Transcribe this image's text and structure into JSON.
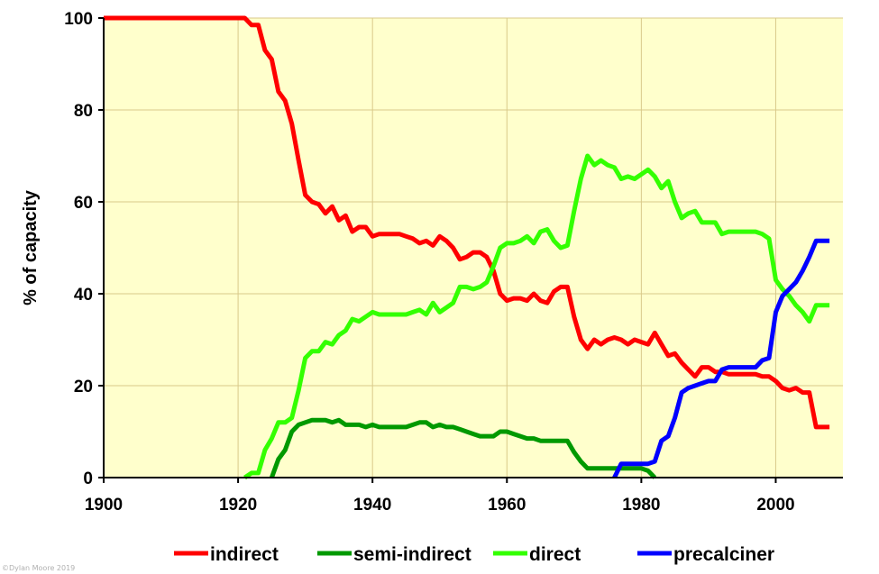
{
  "chart_data": {
    "type": "line",
    "title": "",
    "xlabel": "",
    "ylabel": "% of capacity",
    "xlim": [
      1900,
      2010
    ],
    "ylim": [
      0,
      100
    ],
    "xticks": [
      1900,
      1920,
      1940,
      1960,
      1980,
      2000
    ],
    "yticks": [
      0,
      20,
      40,
      60,
      80,
      100
    ],
    "xtick_labels": [
      "1900",
      "1920",
      "1940",
      "1960",
      "1980",
      "2000"
    ],
    "ytick_labels": [
      "0",
      "20",
      "40",
      "60",
      "80",
      "100"
    ],
    "grid": true,
    "legend_position": "bottom",
    "series": [
      {
        "name": "indirect",
        "color": "#ff0000",
        "points": [
          [
            1900,
            100
          ],
          [
            1921,
            100
          ],
          [
            1922,
            98.5
          ],
          [
            1923,
            98.5
          ],
          [
            1924,
            93
          ],
          [
            1925,
            91
          ],
          [
            1926,
            84
          ],
          [
            1927,
            82
          ],
          [
            1928,
            77
          ],
          [
            1929,
            69
          ],
          [
            1930,
            61.5
          ],
          [
            1931,
            60
          ],
          [
            1932,
            59.5
          ],
          [
            1933,
            57.5
          ],
          [
            1934,
            59
          ],
          [
            1935,
            56
          ],
          [
            1936,
            57
          ],
          [
            1937,
            53.5
          ],
          [
            1938,
            54.5
          ],
          [
            1939,
            54.5
          ],
          [
            1940,
            52.5
          ],
          [
            1941,
            53
          ],
          [
            1942,
            53
          ],
          [
            1943,
            53
          ],
          [
            1944,
            53
          ],
          [
            1945,
            52.5
          ],
          [
            1946,
            52
          ],
          [
            1947,
            51
          ],
          [
            1948,
            51.5
          ],
          [
            1949,
            50.5
          ],
          [
            1950,
            52.5
          ],
          [
            1951,
            51.5
          ],
          [
            1952,
            50
          ],
          [
            1953,
            47.5
          ],
          [
            1954,
            48
          ],
          [
            1955,
            49
          ],
          [
            1956,
            49
          ],
          [
            1957,
            48
          ],
          [
            1958,
            45
          ],
          [
            1959,
            40
          ],
          [
            1960,
            38.5
          ],
          [
            1961,
            39
          ],
          [
            1962,
            39
          ],
          [
            1963,
            38.5
          ],
          [
            1964,
            40
          ],
          [
            1965,
            38.5
          ],
          [
            1966,
            38
          ],
          [
            1967,
            40.5
          ],
          [
            1968,
            41.5
          ],
          [
            1969,
            41.5
          ],
          [
            1970,
            35
          ],
          [
            1971,
            30
          ],
          [
            1972,
            28
          ],
          [
            1973,
            30
          ],
          [
            1974,
            29
          ],
          [
            1975,
            30
          ],
          [
            1976,
            30.5
          ],
          [
            1977,
            30
          ],
          [
            1978,
            29
          ],
          [
            1979,
            30
          ],
          [
            1980,
            29.5
          ],
          [
            1981,
            29
          ],
          [
            1982,
            31.5
          ],
          [
            1983,
            29
          ],
          [
            1984,
            26.5
          ],
          [
            1985,
            27
          ],
          [
            1986,
            25
          ],
          [
            1987,
            23.5
          ],
          [
            1988,
            22
          ],
          [
            1989,
            24
          ],
          [
            1990,
            24
          ],
          [
            1991,
            23
          ],
          [
            1992,
            23
          ],
          [
            1993,
            22.5
          ],
          [
            1994,
            22.5
          ],
          [
            1995,
            22.5
          ],
          [
            1996,
            22.5
          ],
          [
            1997,
            22.5
          ],
          [
            1998,
            22
          ],
          [
            1999,
            22
          ],
          [
            2000,
            21
          ],
          [
            2001,
            19.5
          ],
          [
            2002,
            19
          ],
          [
            2003,
            19.5
          ],
          [
            2004,
            18.5
          ],
          [
            2005,
            18.5
          ],
          [
            2006,
            11
          ],
          [
            2007,
            11
          ],
          [
            2008,
            11
          ]
        ]
      },
      {
        "name": "semi-indirect",
        "color": "#009900",
        "points": [
          [
            1925,
            0
          ],
          [
            1926,
            4
          ],
          [
            1927,
            6
          ],
          [
            1928,
            10
          ],
          [
            1929,
            11.5
          ],
          [
            1930,
            12
          ],
          [
            1931,
            12.5
          ],
          [
            1932,
            12.5
          ],
          [
            1933,
            12.5
          ],
          [
            1934,
            12
          ],
          [
            1935,
            12.5
          ],
          [
            1936,
            11.5
          ],
          [
            1937,
            11.5
          ],
          [
            1938,
            11.5
          ],
          [
            1939,
            11
          ],
          [
            1940,
            11.5
          ],
          [
            1941,
            11
          ],
          [
            1942,
            11
          ],
          [
            1943,
            11
          ],
          [
            1944,
            11
          ],
          [
            1945,
            11
          ],
          [
            1946,
            11.5
          ],
          [
            1947,
            12
          ],
          [
            1948,
            12
          ],
          [
            1949,
            11
          ],
          [
            1950,
            11.5
          ],
          [
            1951,
            11
          ],
          [
            1952,
            11
          ],
          [
            1953,
            10.5
          ],
          [
            1954,
            10
          ],
          [
            1955,
            9.5
          ],
          [
            1956,
            9
          ],
          [
            1957,
            9
          ],
          [
            1958,
            9
          ],
          [
            1959,
            10
          ],
          [
            1960,
            10
          ],
          [
            1961,
            9.5
          ],
          [
            1962,
            9
          ],
          [
            1963,
            8.5
          ],
          [
            1964,
            8.5
          ],
          [
            1965,
            8
          ],
          [
            1966,
            8
          ],
          [
            1967,
            8
          ],
          [
            1968,
            8
          ],
          [
            1969,
            8
          ],
          [
            1970,
            5.5
          ],
          [
            1971,
            3.5
          ],
          [
            1972,
            2
          ],
          [
            1973,
            2
          ],
          [
            1974,
            2
          ],
          [
            1975,
            2
          ],
          [
            1976,
            2
          ],
          [
            1977,
            2
          ],
          [
            1978,
            2
          ],
          [
            1979,
            2
          ],
          [
            1980,
            2
          ],
          [
            1981,
            1.5
          ],
          [
            1982,
            0
          ]
        ]
      },
      {
        "name": "direct",
        "color": "#33ff00",
        "points": [
          [
            1921,
            0
          ],
          [
            1922,
            1
          ],
          [
            1923,
            1
          ],
          [
            1924,
            6
          ],
          [
            1925,
            8.5
          ],
          [
            1926,
            12
          ],
          [
            1927,
            12
          ],
          [
            1928,
            13
          ],
          [
            1929,
            19
          ],
          [
            1930,
            26
          ],
          [
            1931,
            27.5
          ],
          [
            1932,
            27.5
          ],
          [
            1933,
            29.5
          ],
          [
            1934,
            29
          ],
          [
            1935,
            31
          ],
          [
            1936,
            32
          ],
          [
            1937,
            34.5
          ],
          [
            1938,
            34
          ],
          [
            1939,
            35
          ],
          [
            1940,
            36
          ],
          [
            1941,
            35.5
          ],
          [
            1942,
            35.5
          ],
          [
            1943,
            35.5
          ],
          [
            1944,
            35.5
          ],
          [
            1945,
            35.5
          ],
          [
            1946,
            36
          ],
          [
            1947,
            36.5
          ],
          [
            1948,
            35.5
          ],
          [
            1949,
            38
          ],
          [
            1950,
            36
          ],
          [
            1951,
            37
          ],
          [
            1952,
            38
          ],
          [
            1953,
            41.5
          ],
          [
            1954,
            41.5
          ],
          [
            1955,
            41
          ],
          [
            1956,
            41.5
          ],
          [
            1957,
            42.5
          ],
          [
            1958,
            46
          ],
          [
            1959,
            50
          ],
          [
            1960,
            51
          ],
          [
            1961,
            51
          ],
          [
            1962,
            51.5
          ],
          [
            1963,
            52.5
          ],
          [
            1964,
            51
          ],
          [
            1965,
            53.5
          ],
          [
            1966,
            54
          ],
          [
            1967,
            51.5
          ],
          [
            1968,
            50
          ],
          [
            1969,
            50.5
          ],
          [
            1970,
            58
          ],
          [
            1971,
            65
          ],
          [
            1972,
            70
          ],
          [
            1973,
            68
          ],
          [
            1974,
            69
          ],
          [
            1975,
            68
          ],
          [
            1976,
            67.5
          ],
          [
            1977,
            65
          ],
          [
            1978,
            65.5
          ],
          [
            1979,
            65
          ],
          [
            1980,
            66
          ],
          [
            1981,
            67
          ],
          [
            1982,
            65.5
          ],
          [
            1983,
            63
          ],
          [
            1984,
            64.5
          ],
          [
            1985,
            60
          ],
          [
            1986,
            56.5
          ],
          [
            1987,
            57.5
          ],
          [
            1988,
            58
          ],
          [
            1989,
            55.5
          ],
          [
            1990,
            55.5
          ],
          [
            1991,
            55.5
          ],
          [
            1992,
            53
          ],
          [
            1993,
            53.5
          ],
          [
            1994,
            53.5
          ],
          [
            1995,
            53.5
          ],
          [
            1996,
            53.5
          ],
          [
            1997,
            53.5
          ],
          [
            1998,
            53
          ],
          [
            1999,
            52
          ],
          [
            2000,
            43
          ],
          [
            2001,
            41
          ],
          [
            2002,
            39.5
          ],
          [
            2003,
            37.5
          ],
          [
            2004,
            36
          ],
          [
            2005,
            34
          ],
          [
            2006,
            37.5
          ],
          [
            2007,
            37.5
          ],
          [
            2008,
            37.5
          ]
        ]
      },
      {
        "name": "precalciner",
        "color": "#0000ff",
        "points": [
          [
            1976,
            0
          ],
          [
            1977,
            3
          ],
          [
            1978,
            3
          ],
          [
            1979,
            3
          ],
          [
            1980,
            3
          ],
          [
            1981,
            3
          ],
          [
            1982,
            3.5
          ],
          [
            1983,
            8
          ],
          [
            1984,
            9
          ],
          [
            1985,
            13
          ],
          [
            1986,
            18.5
          ],
          [
            1987,
            19.5
          ],
          [
            1988,
            20
          ],
          [
            1989,
            20.5
          ],
          [
            1990,
            21
          ],
          [
            1991,
            21
          ],
          [
            1992,
            23.5
          ],
          [
            1993,
            24
          ],
          [
            1994,
            24
          ],
          [
            1995,
            24
          ],
          [
            1996,
            24
          ],
          [
            1997,
            24
          ],
          [
            1998,
            25.5
          ],
          [
            1999,
            26
          ],
          [
            2000,
            36
          ],
          [
            2001,
            39.5
          ],
          [
            2002,
            41
          ],
          [
            2003,
            42.5
          ],
          [
            2004,
            45
          ],
          [
            2005,
            48
          ],
          [
            2006,
            51.5
          ],
          [
            2007,
            51.5
          ],
          [
            2008,
            51.5
          ]
        ]
      }
    ]
  },
  "credit": "©Dylan Moore 2019"
}
